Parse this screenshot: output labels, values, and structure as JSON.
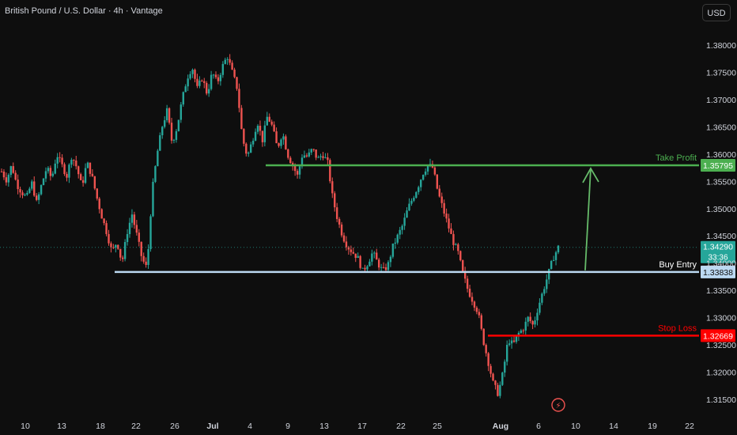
{
  "header": {
    "title": "British Pound / U.S. Dollar · 4h · Vantage",
    "currency": "USD"
  },
  "colors": {
    "background": "#0e0e0e",
    "up": "#26a69a",
    "down": "#ef5350",
    "take_profit": "#4caf50",
    "stop_loss": "#ff0000",
    "entry": "#bcd9f2",
    "arrow": "#66bb6a",
    "text": "#d1d4dc"
  },
  "chart_data": {
    "type": "candlestick",
    "y_axis": {
      "ticks": [
        "1.38000",
        "1.37500",
        "1.37000",
        "1.36500",
        "1.36000",
        "1.35500",
        "1.35000",
        "1.34500",
        "1.34000",
        "1.33500",
        "1.33000",
        "1.32500",
        "1.32000",
        "1.31500"
      ],
      "ylim": [
        1.3135,
        1.385
      ]
    },
    "x_axis": {
      "ticks": [
        "10",
        "13",
        "18",
        "22",
        "26",
        "Jul",
        "4",
        "9",
        "13",
        "17",
        "22",
        "25",
        "Aug",
        "6",
        "10",
        "14",
        "19",
        "22"
      ],
      "bold_ticks": [
        "Jul",
        "Aug"
      ]
    },
    "levels": [
      {
        "name": "Take Profit",
        "label": "Take Profit",
        "value": 1.35795,
        "value_label": "1.35795"
      },
      {
        "name": "Buy Entry",
        "label": "Buy Entry",
        "value": 1.33838,
        "value_label": "1.33838"
      },
      {
        "name": "Stop Loss",
        "label": "Stop Loss",
        "value": 1.32669,
        "value_label": "1.32669"
      }
    ],
    "current_price": {
      "value": 1.3429,
      "label": "1.34290",
      "countdown": "33:36"
    },
    "path_points": [
      1.3568,
      1.3552,
      1.358,
      1.3545,
      1.353,
      1.352,
      1.3548,
      1.351,
      1.3545,
      1.3575,
      1.3555,
      1.36,
      1.358,
      1.356,
      1.3598,
      1.3575,
      1.354,
      1.3585,
      1.356,
      1.352,
      1.3485,
      1.3455,
      1.342,
      1.344,
      1.34,
      1.3455,
      1.349,
      1.345,
      1.3408,
      1.339,
      1.353,
      1.36,
      1.365,
      1.368,
      1.362,
      1.365,
      1.37,
      1.374,
      1.376,
      1.372,
      1.374,
      1.371,
      1.375,
      1.373,
      1.376,
      1.378,
      1.375,
      1.372,
      1.363,
      1.3595,
      1.3625,
      1.366,
      1.3625,
      1.367,
      1.365,
      1.361,
      1.364,
      1.36,
      1.358,
      1.356,
      1.36,
      1.3595,
      1.361,
      1.359,
      1.36,
      1.3585,
      1.352,
      1.348,
      1.345,
      1.343,
      1.342,
      1.341,
      1.3385,
      1.34,
      1.342,
      1.34,
      1.3385,
      1.3395,
      1.343,
      1.345,
      1.347,
      1.35,
      1.352,
      1.354,
      1.3565,
      1.358,
      1.3575,
      1.353,
      1.35,
      1.347,
      1.344,
      1.342,
      1.338,
      1.335,
      1.333,
      1.331,
      1.326,
      1.322,
      1.318,
      1.316,
      1.32,
      1.326,
      1.325,
      1.327,
      1.328,
      1.33,
      1.3285,
      1.332,
      1.335,
      1.338,
      1.341,
      1.3429
    ]
  },
  "footer": {
    "lightning_label": "⚡"
  }
}
